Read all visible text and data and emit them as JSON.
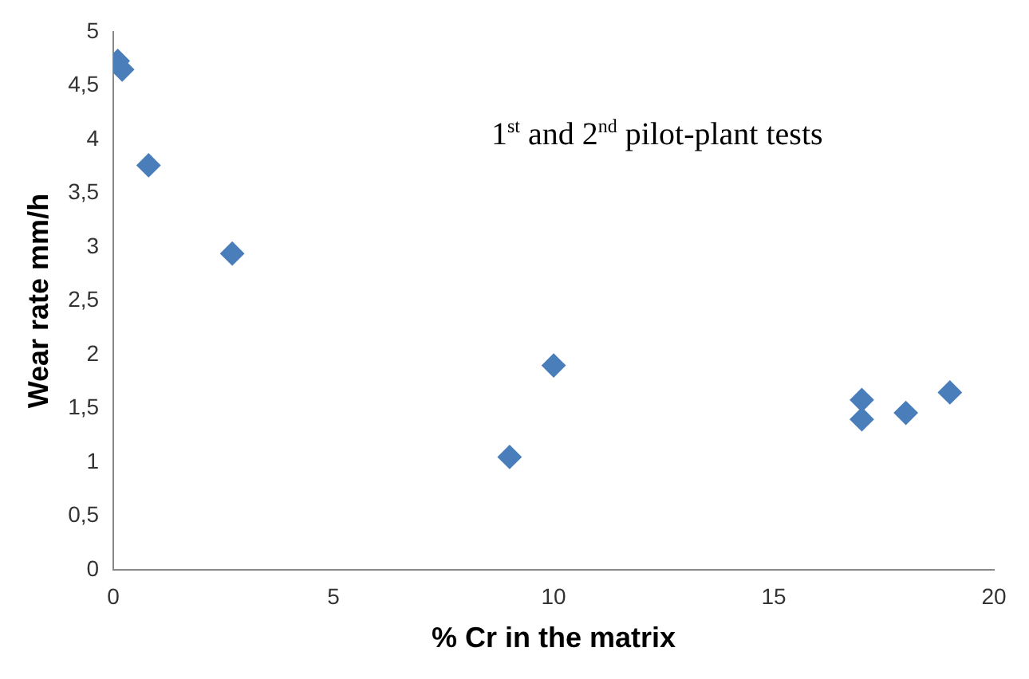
{
  "chart_data": {
    "type": "scatter",
    "xlabel": "% Cr in the matrix",
    "ylabel": "Wear rate mm/h",
    "annotations": [
      "1$^{st}$ and 2$^{nd}$ pilot-plant tests"
    ],
    "x": [
      0.1,
      0.2,
      0.8,
      2.7,
      9,
      10,
      17,
      17,
      18,
      19
    ],
    "series": [
      {
        "color": "#4a7ebb",
        "values": [
          4.73,
          4.65,
          3.76,
          2.94,
          1.05,
          1.9,
          1.58,
          1.4,
          1.46,
          1.65
        ]
      }
    ],
    "xlim": [
      0,
      20
    ],
    "xticks": [
      0,
      5,
      10,
      15,
      20
    ],
    "ylim": [
      0,
      5
    ],
    "yticks": [
      0,
      {
        "value": 0.5,
        "label": "0,5"
      },
      1,
      {
        "value": 1.5,
        "label": "1,5"
      },
      2,
      {
        "value": 2.5,
        "label": "2,5"
      },
      3,
      {
        "value": 3.5,
        "label": "3,5"
      },
      4,
      {
        "value": 4.5,
        "label": "4,5"
      },
      5
    ],
    "grid": false,
    "legend": false,
    "marker": "diamond"
  }
}
